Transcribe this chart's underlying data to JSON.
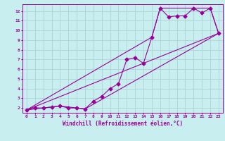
{
  "xlabel": "Windchill (Refroidissement éolien,°C)",
  "bg_color": "#c8eef0",
  "grid_color": "#b0d8da",
  "line_color": "#990099",
  "xlim": [
    -0.5,
    23.5
  ],
  "ylim": [
    1.5,
    12.7
  ],
  "xticks": [
    0,
    1,
    2,
    3,
    4,
    5,
    6,
    7,
    8,
    9,
    10,
    11,
    12,
    13,
    14,
    15,
    16,
    17,
    18,
    19,
    20,
    21,
    22,
    23
  ],
  "yticks": [
    2,
    3,
    4,
    5,
    6,
    7,
    8,
    9,
    10,
    11,
    12
  ],
  "data_line": [
    [
      0,
      1.8
    ],
    [
      1,
      2.0
    ],
    [
      2,
      2.0
    ],
    [
      3,
      2.1
    ],
    [
      4,
      2.2
    ],
    [
      5,
      2.0
    ],
    [
      6,
      2.0
    ],
    [
      7,
      1.9
    ],
    [
      8,
      2.7
    ],
    [
      9,
      3.2
    ],
    [
      10,
      4.0
    ],
    [
      11,
      4.5
    ],
    [
      12,
      7.0
    ],
    [
      13,
      7.2
    ],
    [
      14,
      6.6
    ],
    [
      15,
      9.3
    ],
    [
      16,
      12.3
    ],
    [
      17,
      11.4
    ],
    [
      18,
      11.5
    ],
    [
      19,
      11.5
    ],
    [
      20,
      12.3
    ],
    [
      21,
      11.8
    ],
    [
      22,
      12.3
    ],
    [
      23,
      9.7
    ]
  ],
  "regression_line": [
    [
      0,
      1.8
    ],
    [
      23,
      9.7
    ]
  ],
  "envelope_upper": [
    [
      0,
      1.8
    ],
    [
      15,
      9.3
    ],
    [
      16,
      12.3
    ],
    [
      20,
      12.3
    ],
    [
      22,
      12.3
    ],
    [
      23,
      9.7
    ]
  ],
  "envelope_lower": [
    [
      0,
      1.8
    ],
    [
      4,
      2.2
    ],
    [
      6,
      2.0
    ],
    [
      7,
      1.9
    ],
    [
      23,
      9.7
    ]
  ]
}
